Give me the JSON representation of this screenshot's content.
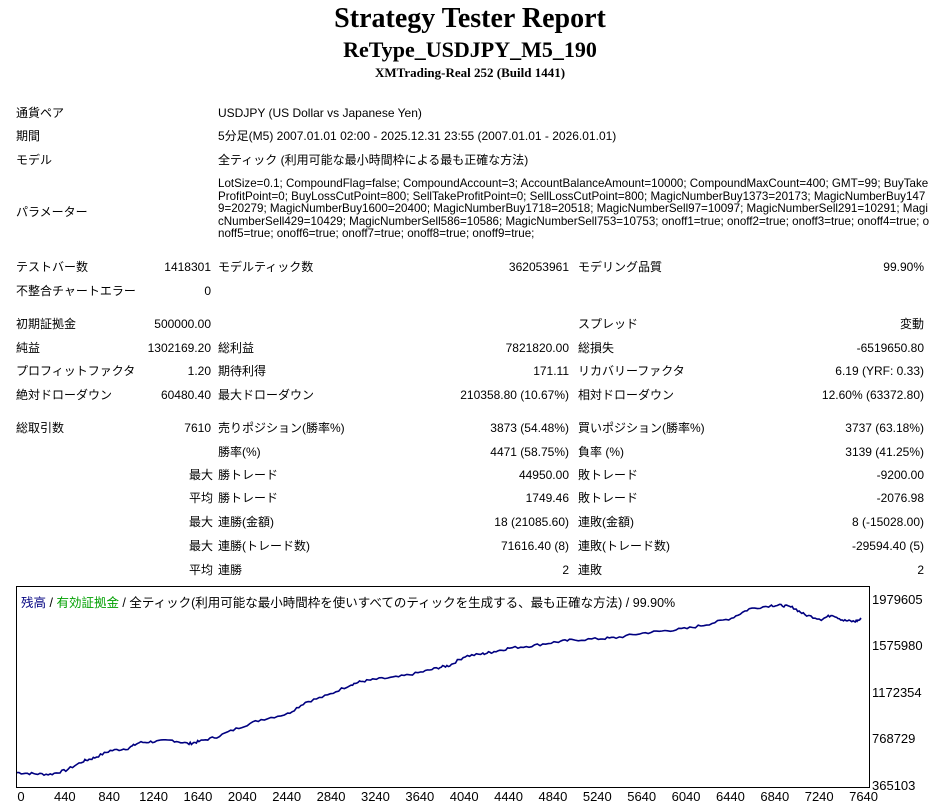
{
  "header": {
    "title": "Strategy Tester Report",
    "subtitle": "ReType_USDJPY_M5_190",
    "server": "XMTrading-Real 252 (Build 1441)"
  },
  "info": {
    "symbol_label": "通貨ペア",
    "symbol_value": "USDJPY (US Dollar vs Japanese Yen)",
    "period_label": "期間",
    "period_value": "5分足(M5) 2007.01.01 02:00 - 2025.12.31 23:55 (2007.01.01 - 2026.01.01)",
    "model_label": "モデル",
    "model_value": "全ティック (利用可能な最小時間枠による最も正確な方法)",
    "params_label": "パラメーター",
    "params_value": "LotSize=0.1; CompoundFlag=false; CompoundAccount=3; AccountBalanceAmount=10000; CompoundMaxCount=400; GMT=99; BuyTakeProfitPoint=0; BuyLossCutPoint=800; SellTakeProfitPoint=0; SellLossCutPoint=800; MagicNumberBuy1373=20173; MagicNumberBuy1479=20279; MagicNumberBuy1600=20400; MagicNumberBuy1718=20518; MagicNumberSell97=10097; MagicNumberSell291=10291; MagicNumberSell429=10429; MagicNumberSell586=10586; MagicNumberSell753=10753; onoff1=true; onoff2=true; onoff3=true; onoff4=true; onoff5=true; onoff6=true; onoff7=true; onoff8=true; onoff9=true;"
  },
  "bars": {
    "bars_label": "テストバー数",
    "bars_value": "1418301",
    "ticks_label": "モデルティック数",
    "ticks_value": "362053961",
    "quality_label": "モデリング品質",
    "quality_value": "99.90%",
    "errors_label": "不整合チャートエラー",
    "errors_value": "0"
  },
  "money": {
    "deposit_label": "初期証拠金",
    "deposit_value": "500000.00",
    "spread_label": "スプレッド",
    "spread_value": "変動",
    "net_label": "純益",
    "net_value": "1302169.20",
    "gross_profit_label": "総利益",
    "gross_profit_value": "7821820.00",
    "gross_loss_label": "総損失",
    "gross_loss_value": "-6519650.80",
    "pf_label": "プロフィットファクタ",
    "pf_value": "1.20",
    "expected_label": "期待利得",
    "expected_value": "171.11",
    "recovery_label": "リカバリーファクタ",
    "recovery_value": "6.19 (YRF: 0.33)",
    "abs_dd_label": "絶対ドローダウン",
    "abs_dd_value": "60480.40",
    "max_dd_label": "最大ドローダウン",
    "max_dd_value": "210358.80 (10.67%)",
    "rel_dd_label": "相対ドローダウン",
    "rel_dd_value": "12.60% (63372.80)"
  },
  "trades": {
    "total_label": "総取引数",
    "total_value": "7610",
    "short_label": "売りポジション(勝率%)",
    "short_value": "3873 (54.48%)",
    "long_label": "買いポジション(勝率%)",
    "long_value": "3737 (63.18%)",
    "win_label": "勝率(%)",
    "win_value": "4471 (58.75%)",
    "loss_label": "負率 (%)",
    "loss_value": "3139 (41.25%)",
    "max_prefix": "最大",
    "avg_prefix": "平均",
    "max_win_label": "勝トレード",
    "max_win_value": "44950.00",
    "max_loss_label": "敗トレード",
    "max_loss_value": "-9200.00",
    "avg_win_label": "勝トレード",
    "avg_win_value": "1749.46",
    "avg_loss_label": "敗トレード",
    "avg_loss_value": "-2076.98",
    "cons_win_money_label": "連勝(金額)",
    "cons_win_money_value": "18 (21085.60)",
    "cons_loss_money_label": "連敗(金額)",
    "cons_loss_money_value": "8 (-15028.00)",
    "cons_win_trades_label": "連勝(トレード数)",
    "cons_win_trades_value": "71616.40 (8)",
    "cons_loss_trades_label": "連敗(トレード数)",
    "cons_loss_trades_value": "-29594.40 (5)",
    "avg_cons_win_label": "連勝",
    "avg_cons_win_value": "2",
    "avg_cons_loss_label": "連敗",
    "avg_cons_loss_value": "2"
  },
  "chart_data": {
    "type": "line",
    "legend": {
      "balance": "残高",
      "sep1": " / ",
      "equity": "有効証拠金",
      "rest": " / 全ティック(利用可能な最小時間枠を使いすべてのティックを生成する、最も正確な方法) / 99.90%"
    },
    "line_color": "#000080",
    "ylim": [
      365103,
      2100000
    ],
    "y_ticks": [
      {
        "value": 1979605,
        "label": "1979605"
      },
      {
        "value": 1575980,
        "label": "1575980"
      },
      {
        "value": 1172354,
        "label": "1172354"
      },
      {
        "value": 768729,
        "label": "768729"
      },
      {
        "value": 365103,
        "label": "365103"
      }
    ],
    "xlim": [
      0,
      7680
    ],
    "x_ticks": [
      0,
      440,
      840,
      1240,
      1640,
      2040,
      2440,
      2840,
      3240,
      3640,
      4040,
      4440,
      4840,
      5240,
      5640,
      6040,
      6440,
      6840,
      7240,
      7640
    ],
    "series": [
      {
        "x": [
          0,
          150,
          300,
          440,
          600,
          700,
          840,
          1000,
          1100,
          1240,
          1400,
          1550,
          1640,
          1800,
          2000,
          2200,
          2440,
          2600,
          2800,
          3000,
          3100,
          3240,
          3440,
          3640,
          3800,
          3900,
          4040,
          4200,
          4300,
          4440,
          4640,
          4840,
          5000,
          5240,
          5400,
          5640,
          5840,
          6040,
          6240,
          6440,
          6600,
          6800,
          6900,
          7000,
          7100,
          7250,
          7350,
          7450,
          7550,
          7610
        ],
        "y": [
          490000,
          480000,
          475000,
          510000,
          590000,
          620000,
          680000,
          700000,
          750000,
          760000,
          770000,
          740000,
          760000,
          800000,
          880000,
          950000,
          1000000,
          1100000,
          1160000,
          1250000,
          1280000,
          1300000,
          1320000,
          1360000,
          1400000,
          1420000,
          1500000,
          1520000,
          1540000,
          1570000,
          1590000,
          1620000,
          1640000,
          1650000,
          1660000,
          1700000,
          1720000,
          1740000,
          1780000,
          1830000,
          1910000,
          1940000,
          1940000,
          1920000,
          1860000,
          1820000,
          1860000,
          1810000,
          1800000,
          1820000
        ]
      }
    ]
  }
}
